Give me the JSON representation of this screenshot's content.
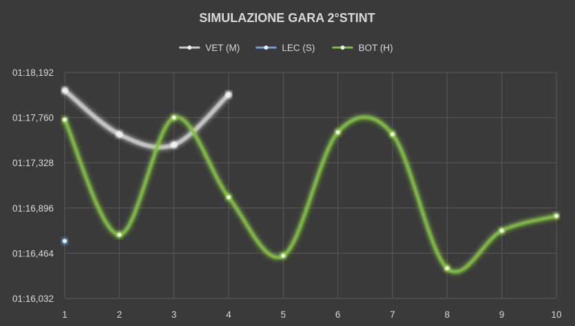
{
  "chart_data": {
    "type": "line",
    "title": "SIMULAZIONE GARA 2°STINT",
    "xlabel": "",
    "ylabel": "",
    "x": [
      1,
      2,
      3,
      4,
      5,
      6,
      7,
      8,
      9,
      10
    ],
    "x_tick_labels": [
      "1",
      "2",
      "3",
      "4",
      "5",
      "6",
      "7",
      "8",
      "9",
      "10"
    ],
    "y_tick_labels": [
      "01:16,032",
      "01:16,464",
      "01:16,896",
      "01:17,328",
      "01:17,760",
      "01:18,192"
    ],
    "y_ticks_seconds": [
      76.032,
      76.464,
      76.896,
      77.328,
      77.76,
      78.192
    ],
    "ylim": [
      76.032,
      78.192
    ],
    "y_unit": "seconds (lap time mm:ss,mmm)",
    "smooth": true,
    "grid": true,
    "legend_position": "top",
    "series": [
      {
        "name": "VET (M)",
        "color": "#c8c8c8",
        "glow": "#ffffff",
        "values": [
          78.02,
          77.6,
          77.5,
          77.98,
          null,
          null,
          null,
          null,
          null,
          null
        ]
      },
      {
        "name": "LEC (S)",
        "color": "#6fa0dc",
        "glow": "#5b9bd5",
        "values": [
          76.58,
          null,
          null,
          null,
          null,
          null,
          null,
          null,
          null,
          null
        ]
      },
      {
        "name": "BOT (H)",
        "color": "#7bbf3f",
        "glow": "#92d050",
        "values": [
          77.74,
          76.64,
          77.76,
          77.0,
          76.44,
          77.62,
          77.6,
          76.32,
          76.68,
          76.82
        ]
      }
    ]
  },
  "colors": {
    "background": "#3a3a3a",
    "gridline": "#595959",
    "text": "#d9d9d9"
  }
}
